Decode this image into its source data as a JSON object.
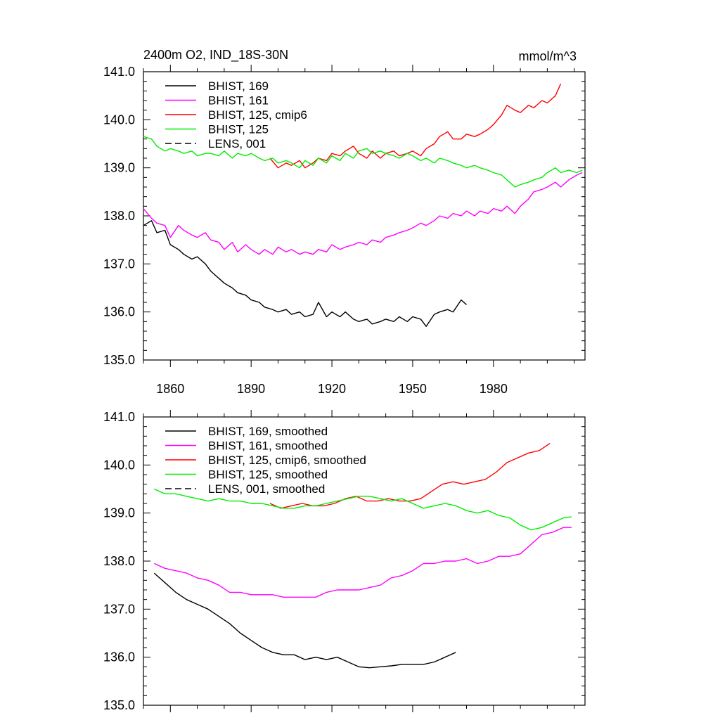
{
  "figure": {
    "title": "2400m O2, IND_18S-30N",
    "units": "mmol/m^3"
  },
  "chart_data": [
    {
      "type": "line",
      "title": "2400m O2, IND_18S-30N",
      "units": "mmol/m^3",
      "xlim": [
        1850,
        2014
      ],
      "ylim": [
        135.0,
        141.0
      ],
      "xticks": [
        1860,
        1890,
        1920,
        1950,
        1980
      ],
      "xtick_labels": [
        "1860",
        "1890",
        "1920",
        "1950",
        "1980"
      ],
      "yticks": [
        135.0,
        136.0,
        137.0,
        138.0,
        139.0,
        140.0,
        141.0
      ],
      "ytick_labels": [
        "135.0",
        "136.0",
        "137.0",
        "138.0",
        "139.0",
        "140.0",
        "141.0"
      ],
      "legend_position": "top-left",
      "series": [
        {
          "name": "BHIST, 169",
          "color": "#000000",
          "dash": "solid",
          "x": [
            1850,
            1853,
            1855,
            1858,
            1860,
            1863,
            1865,
            1868,
            1870,
            1873,
            1875,
            1878,
            1880,
            1883,
            1885,
            1888,
            1890,
            1893,
            1895,
            1898,
            1900,
            1903,
            1905,
            1908,
            1910,
            1913,
            1915,
            1918,
            1920,
            1923,
            1925,
            1928,
            1930,
            1933,
            1935,
            1938,
            1940,
            1943,
            1945,
            1948,
            1950,
            1953,
            1955,
            1958,
            1960,
            1963,
            1965,
            1968,
            1970
          ],
          "y": [
            137.8,
            137.9,
            137.65,
            137.7,
            137.4,
            137.3,
            137.2,
            137.1,
            137.15,
            137.0,
            136.85,
            136.7,
            136.6,
            136.5,
            136.4,
            136.35,
            136.25,
            136.2,
            136.1,
            136.05,
            136.0,
            136.05,
            135.95,
            136.0,
            135.9,
            135.95,
            136.2,
            135.9,
            136.0,
            135.9,
            136.0,
            135.85,
            135.8,
            135.85,
            135.75,
            135.8,
            135.85,
            135.8,
            135.9,
            135.8,
            135.9,
            135.85,
            135.7,
            135.95,
            136.0,
            136.05,
            136.0,
            136.25,
            136.15
          ]
        },
        {
          "name": "BHIST, 161",
          "color": "#ff00ff",
          "dash": "solid",
          "x": [
            1850,
            1853,
            1855,
            1858,
            1860,
            1863,
            1865,
            1868,
            1870,
            1873,
            1875,
            1878,
            1880,
            1883,
            1885,
            1888,
            1890,
            1893,
            1895,
            1898,
            1900,
            1903,
            1905,
            1908,
            1910,
            1913,
            1915,
            1918,
            1920,
            1923,
            1925,
            1928,
            1930,
            1933,
            1935,
            1938,
            1940,
            1943,
            1945,
            1948,
            1950,
            1953,
            1955,
            1958,
            1960,
            1963,
            1965,
            1968,
            1970,
            1973,
            1975,
            1978,
            1980,
            1983,
            1985,
            1988,
            1990,
            1993,
            1995,
            1998,
            2000,
            2003,
            2005,
            2008,
            2011,
            2013
          ],
          "y": [
            138.15,
            137.95,
            137.85,
            137.8,
            137.55,
            137.8,
            137.7,
            137.6,
            137.55,
            137.65,
            137.5,
            137.45,
            137.3,
            137.45,
            137.25,
            137.4,
            137.3,
            137.2,
            137.3,
            137.2,
            137.35,
            137.25,
            137.3,
            137.2,
            137.25,
            137.2,
            137.3,
            137.25,
            137.4,
            137.3,
            137.35,
            137.4,
            137.45,
            137.4,
            137.5,
            137.45,
            137.55,
            137.6,
            137.65,
            137.7,
            137.75,
            137.85,
            137.8,
            137.9,
            138.0,
            137.95,
            138.05,
            138.0,
            138.1,
            138.0,
            138.1,
            138.05,
            138.15,
            138.1,
            138.2,
            138.05,
            138.2,
            138.35,
            138.5,
            138.55,
            138.6,
            138.7,
            138.6,
            138.75,
            138.85,
            138.9
          ]
        },
        {
          "name": "BHIST, 125, cmip6",
          "color": "#ff0000",
          "dash": "solid",
          "x": [
            1897,
            1900,
            1903,
            1905,
            1908,
            1910,
            1913,
            1915,
            1918,
            1920,
            1923,
            1925,
            1928,
            1930,
            1933,
            1935,
            1938,
            1940,
            1943,
            1945,
            1948,
            1950,
            1953,
            1955,
            1958,
            1960,
            1963,
            1965,
            1968,
            1970,
            1973,
            1975,
            1978,
            1980,
            1983,
            1985,
            1988,
            1990,
            1993,
            1995,
            1998,
            2000,
            2003,
            2005
          ],
          "y": [
            139.2,
            139.0,
            139.1,
            139.05,
            139.15,
            139.0,
            139.1,
            139.2,
            139.15,
            139.3,
            139.25,
            139.35,
            139.45,
            139.3,
            139.2,
            139.35,
            139.2,
            139.3,
            139.35,
            139.25,
            139.3,
            139.35,
            139.25,
            139.4,
            139.5,
            139.65,
            139.75,
            139.6,
            139.6,
            139.7,
            139.65,
            139.7,
            139.8,
            139.9,
            140.1,
            140.3,
            140.2,
            140.15,
            140.3,
            140.25,
            140.4,
            140.35,
            140.5,
            140.75
          ]
        },
        {
          "name": "BHIST, 125",
          "color": "#00ee00",
          "dash": "solid",
          "x": [
            1850,
            1853,
            1855,
            1858,
            1860,
            1863,
            1865,
            1868,
            1870,
            1873,
            1875,
            1878,
            1880,
            1883,
            1885,
            1888,
            1890,
            1893,
            1895,
            1898,
            1900,
            1903,
            1905,
            1908,
            1910,
            1913,
            1915,
            1918,
            1920,
            1923,
            1925,
            1928,
            1930,
            1933,
            1935,
            1938,
            1940,
            1943,
            1945,
            1948,
            1950,
            1953,
            1955,
            1958,
            1960,
            1963,
            1965,
            1968,
            1970,
            1973,
            1975,
            1978,
            1980,
            1983,
            1985,
            1988,
            1990,
            1993,
            1995,
            1998,
            2000,
            2003,
            2005,
            2008,
            2011,
            2013
          ],
          "y": [
            139.65,
            139.6,
            139.45,
            139.35,
            139.4,
            139.35,
            139.3,
            139.35,
            139.25,
            139.3,
            139.3,
            139.25,
            139.35,
            139.2,
            139.3,
            139.25,
            139.3,
            139.2,
            139.15,
            139.2,
            139.1,
            139.15,
            139.1,
            139.0,
            139.15,
            139.05,
            139.2,
            139.1,
            139.25,
            139.15,
            139.3,
            139.2,
            139.35,
            139.4,
            139.3,
            139.35,
            139.3,
            139.25,
            139.2,
            139.3,
            139.25,
            139.15,
            139.2,
            139.1,
            139.2,
            139.15,
            139.1,
            139.05,
            139.0,
            139.05,
            139.0,
            138.95,
            138.9,
            138.85,
            138.75,
            138.6,
            138.65,
            138.7,
            138.75,
            138.8,
            138.9,
            139.0,
            138.9,
            138.95,
            138.9,
            138.95
          ]
        },
        {
          "name": "LENS, 001",
          "color": "#000000",
          "dash": "dashed",
          "x": [],
          "y": []
        }
      ]
    },
    {
      "type": "line",
      "title": "",
      "xlim": [
        1850,
        2014
      ],
      "ylim": [
        135.0,
        141.0
      ],
      "xticks": [
        1860,
        1890,
        1920,
        1950,
        1980
      ],
      "xtick_labels": [],
      "yticks": [
        135.0,
        136.0,
        137.0,
        138.0,
        139.0,
        140.0,
        141.0
      ],
      "ytick_labels": [
        "135.0",
        "136.0",
        "137.0",
        "138.0",
        "139.0",
        "140.0",
        "141.0"
      ],
      "legend_position": "top-left",
      "series": [
        {
          "name": "BHIST, 169, smoothed",
          "color": "#000000",
          "dash": "solid",
          "x": [
            1854,
            1858,
            1862,
            1866,
            1870,
            1874,
            1878,
            1882,
            1886,
            1890,
            1894,
            1898,
            1902,
            1906,
            1910,
            1914,
            1918,
            1922,
            1926,
            1930,
            1934,
            1938,
            1942,
            1946,
            1950,
            1954,
            1958,
            1962,
            1966
          ],
          "y": [
            137.75,
            137.55,
            137.35,
            137.2,
            137.1,
            137.0,
            136.85,
            136.7,
            136.5,
            136.35,
            136.2,
            136.1,
            136.05,
            136.05,
            135.95,
            136.0,
            135.95,
            136.0,
            135.9,
            135.8,
            135.78,
            135.8,
            135.82,
            135.85,
            135.85,
            135.85,
            135.9,
            136.0,
            136.1
          ]
        },
        {
          "name": "BHIST, 161, smoothed",
          "color": "#ff00ff",
          "dash": "solid",
          "x": [
            1854,
            1858,
            1862,
            1866,
            1870,
            1874,
            1878,
            1882,
            1886,
            1890,
            1894,
            1898,
            1902,
            1906,
            1910,
            1914,
            1918,
            1922,
            1926,
            1930,
            1934,
            1938,
            1942,
            1946,
            1950,
            1954,
            1958,
            1962,
            1966,
            1970,
            1974,
            1978,
            1982,
            1986,
            1990,
            1994,
            1998,
            2002,
            2006,
            2009
          ],
          "y": [
            137.95,
            137.85,
            137.8,
            137.75,
            137.65,
            137.6,
            137.5,
            137.35,
            137.35,
            137.3,
            137.3,
            137.3,
            137.25,
            137.25,
            137.25,
            137.25,
            137.35,
            137.4,
            137.4,
            137.4,
            137.45,
            137.5,
            137.65,
            137.7,
            137.8,
            137.95,
            137.95,
            138.0,
            138.0,
            138.05,
            137.95,
            138.0,
            138.1,
            138.1,
            138.15,
            138.35,
            138.55,
            138.6,
            138.7,
            138.7
          ]
        },
        {
          "name": "BHIST, 125, cmip6, smoothed",
          "color": "#ff0000",
          "dash": "solid",
          "x": [
            1897,
            1901,
            1905,
            1909,
            1913,
            1917,
            1921,
            1925,
            1929,
            1933,
            1937,
            1941,
            1945,
            1949,
            1953,
            1957,
            1961,
            1965,
            1969,
            1973,
            1977,
            1981,
            1985,
            1989,
            1993,
            1997,
            2001
          ],
          "y": [
            139.2,
            139.1,
            139.15,
            139.2,
            139.15,
            139.15,
            139.2,
            139.3,
            139.35,
            139.25,
            139.25,
            139.3,
            139.25,
            139.25,
            139.3,
            139.45,
            139.6,
            139.65,
            139.6,
            139.65,
            139.7,
            139.85,
            140.05,
            140.15,
            140.25,
            140.3,
            140.45
          ]
        },
        {
          "name": "BHIST, 125, smoothed",
          "color": "#00ee00",
          "dash": "solid",
          "x": [
            1854,
            1858,
            1862,
            1866,
            1870,
            1874,
            1878,
            1882,
            1886,
            1890,
            1894,
            1898,
            1902,
            1906,
            1910,
            1914,
            1918,
            1922,
            1926,
            1930,
            1934,
            1938,
            1942,
            1946,
            1950,
            1954,
            1958,
            1962,
            1966,
            1970,
            1974,
            1978,
            1982,
            1986,
            1990,
            1994,
            1998,
            2002,
            2006,
            2009
          ],
          "y": [
            139.5,
            139.4,
            139.4,
            139.35,
            139.3,
            139.25,
            139.3,
            139.25,
            139.25,
            139.2,
            139.2,
            139.15,
            139.1,
            139.1,
            139.15,
            139.15,
            139.2,
            139.25,
            139.3,
            139.35,
            139.35,
            139.3,
            139.25,
            139.3,
            139.2,
            139.1,
            139.15,
            139.2,
            139.15,
            139.05,
            139.0,
            139.05,
            138.95,
            138.9,
            138.75,
            138.65,
            138.7,
            138.8,
            138.9,
            138.92
          ]
        },
        {
          "name": "LENS, 001, smoothed",
          "color": "#000000",
          "dash": "dashed",
          "x": [],
          "y": []
        }
      ]
    }
  ]
}
